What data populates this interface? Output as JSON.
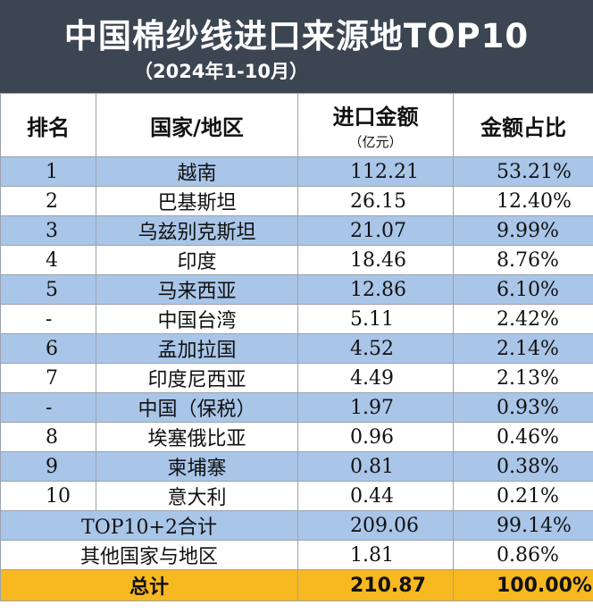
{
  "header": {
    "title": "中国棉纱线进口来源地TOP10",
    "subtitle": "（2024年1-10月）"
  },
  "columns": {
    "rank": "排名",
    "region": "国家/地区",
    "amount": "进口金额",
    "amount_unit": "（亿元）",
    "share": "金额占比"
  },
  "rows": [
    {
      "rank": "1",
      "region": "越南",
      "amount": "112.21",
      "share": "53.21%"
    },
    {
      "rank": "2",
      "region": "巴基斯坦",
      "amount": "26.15",
      "share": "12.40%"
    },
    {
      "rank": "3",
      "region": "乌兹别克斯坦",
      "amount": "21.07",
      "share": "9.99%"
    },
    {
      "rank": "4",
      "region": "印度",
      "amount": "18.46",
      "share": "8.76%"
    },
    {
      "rank": "5",
      "region": "马来西亚",
      "amount": "12.86",
      "share": "6.10%"
    },
    {
      "rank": "-",
      "region": "中国台湾",
      "amount": "5.11",
      "share": "2.42%"
    },
    {
      "rank": "6",
      "region": "孟加拉国",
      "amount": "4.52",
      "share": "2.14%"
    },
    {
      "rank": "7",
      "region": "印度尼西亚",
      "amount": "4.49",
      "share": "2.13%"
    },
    {
      "rank": "-",
      "region": "中国（保税）",
      "amount": "1.97",
      "share": "0.93%"
    },
    {
      "rank": "8",
      "region": "埃塞俄比亚",
      "amount": "0.96",
      "share": "0.46%"
    },
    {
      "rank": "9",
      "region": "柬埔寨",
      "amount": "0.81",
      "share": "0.38%"
    },
    {
      "rank": "10",
      "region": "意大利",
      "amount": "0.44",
      "share": "0.21%"
    }
  ],
  "summary": {
    "top_label": "TOP10+2合计",
    "top_amount": "209.06",
    "top_share": "99.14%",
    "other_label": "其他国家与地区",
    "other_amount": "1.81",
    "other_share": "0.86%",
    "total_label": "总计",
    "total_amount": "210.87",
    "total_share": "100.00%"
  },
  "colors": {
    "header_bg": "#3c4552",
    "row_blue": "#a9c6e8",
    "total_bg": "#f8b820"
  }
}
